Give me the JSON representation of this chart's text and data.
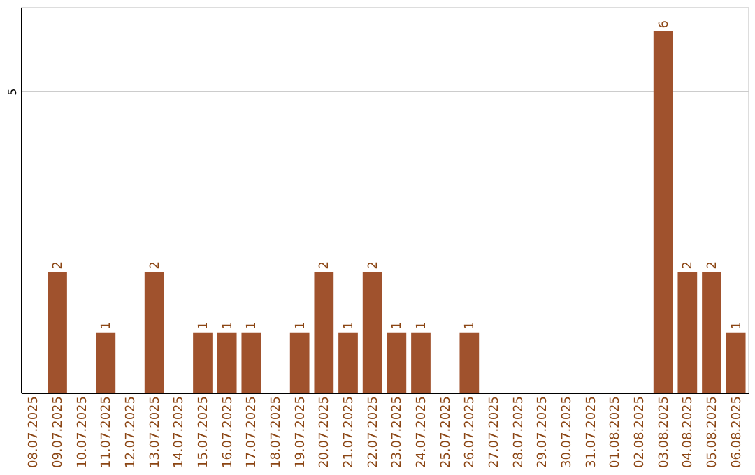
{
  "chart_data": {
    "type": "bar",
    "categories": [
      "08.07.2025",
      "09.07.2025",
      "10.07.2025",
      "11.07.2025",
      "12.07.2025",
      "13.07.2025",
      "14.07.2025",
      "15.07.2025",
      "16.07.2025",
      "17.07.2025",
      "18.07.2025",
      "19.07.2025",
      "20.07.2025",
      "21.07.2025",
      "22.07.2025",
      "23.07.2025",
      "24.07.2025",
      "25.07.2025",
      "26.07.2025",
      "27.07.2025",
      "28.07.2025",
      "29.07.2025",
      "30.07.2025",
      "31.07.2025",
      "01.08.2025",
      "02.08.2025",
      "03.08.2025",
      "04.08.2025",
      "05.08.2025",
      "06.08.2025"
    ],
    "values": [
      0,
      2,
      0,
      1,
      0,
      2,
      0,
      1,
      1,
      1,
      0,
      1,
      2,
      1,
      2,
      1,
      1,
      0,
      1,
      0,
      0,
      0,
      0,
      0,
      0,
      0,
      6,
      2,
      2,
      1
    ],
    "value_labels": [
      null,
      "2",
      null,
      "1",
      null,
      "2",
      null,
      "1",
      "1",
      "1",
      null,
      "1",
      "2",
      "1",
      "2",
      "1",
      "1",
      null,
      "1",
      null,
      null,
      null,
      null,
      null,
      null,
      null,
      "6",
      "2",
      "2",
      "1"
    ],
    "color": "#a0522d",
    "ylim": [
      0,
      6.4
    ],
    "yticks": [
      5
    ],
    "grid": "y"
  }
}
